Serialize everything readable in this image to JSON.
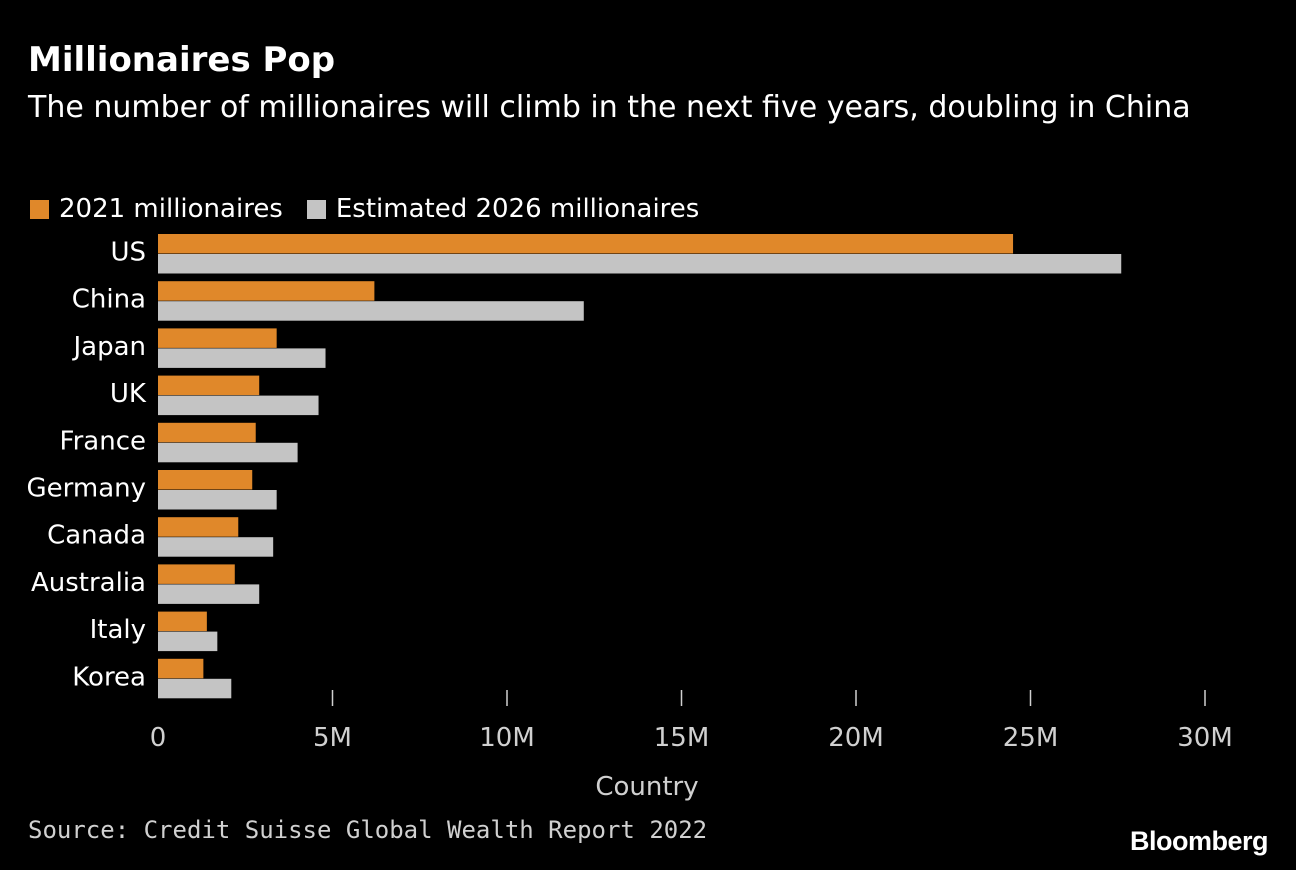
{
  "header": {
    "title": "Millionaires Pop",
    "subtitle": "The number of millionaires will climb in the next five years, doubling in China"
  },
  "legend": {
    "series_2021": "2021 millionaires",
    "series_2026": "Estimated 2026 millionaires"
  },
  "colors": {
    "series_2021": "#e0882a",
    "series_2026": "#c4c4c4",
    "background": "#000000",
    "text": "#ffffff"
  },
  "chart_data": {
    "type": "bar",
    "orientation": "horizontal",
    "title": "Millionaires Pop",
    "subtitle": "The number of millionaires will climb in the next five years, doubling in China",
    "xlabel": "Country",
    "ylabel": "",
    "categories": [
      "US",
      "China",
      "Japan",
      "UK",
      "France",
      "Germany",
      "Canada",
      "Australia",
      "Italy",
      "Korea"
    ],
    "series": [
      {
        "name": "2021 millionaires",
        "values": [
          24500000,
          6200000,
          3400000,
          2900000,
          2800000,
          2700000,
          2300000,
          2200000,
          1400000,
          1300000
        ]
      },
      {
        "name": "Estimated 2026 millionaires",
        "values": [
          27600000,
          12200000,
          4800000,
          4600000,
          4000000,
          3400000,
          3300000,
          2900000,
          1700000,
          2100000
        ]
      }
    ],
    "xlim": [
      0,
      30000000
    ],
    "xticks": [
      0,
      5000000,
      10000000,
      15000000,
      20000000,
      25000000,
      30000000
    ],
    "xtick_labels": [
      "0",
      "5M",
      "10M",
      "15M",
      "20M",
      "25M",
      "30M"
    ],
    "legend_position": "top-left",
    "grid": false
  },
  "footer": {
    "source": "Source: Credit Suisse Global Wealth Report 2022",
    "brand": "Bloomberg"
  }
}
